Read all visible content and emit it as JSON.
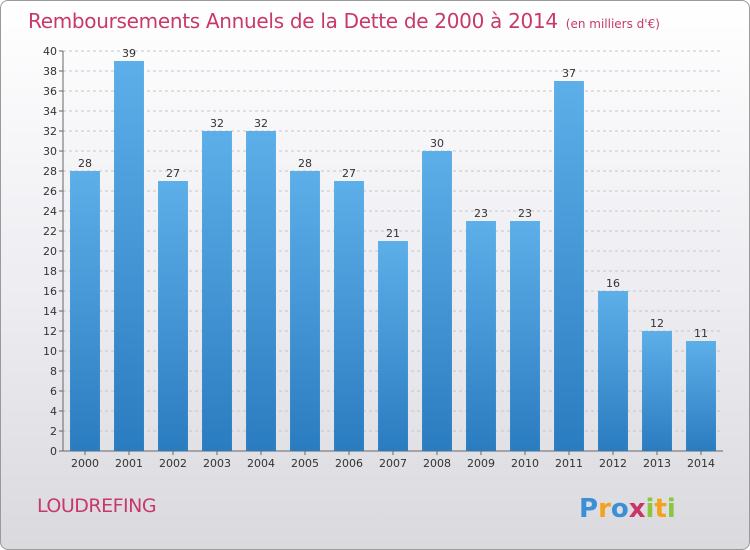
{
  "header": {
    "title": "Remboursements Annuels de la Dette de 2000 à 2014",
    "subtitle": "(en milliers d'€)"
  },
  "footer": {
    "commune": "LOUDREFING",
    "brand": "Proxiti"
  },
  "colors": {
    "title": "#c8386a",
    "bar_top": "#5dafe9",
    "bar_bottom": "#2a7cc0",
    "brand_p": "#3a8fd6",
    "brand_r": "#f4a21a",
    "brand_o": "#3a8fd6",
    "brand_x": "#cc3366",
    "brand_i": "#8cc63f",
    "brand_t": "#f4a21a"
  },
  "chart_data": {
    "type": "bar",
    "title": "Remboursements Annuels de la Dette de 2000 à 2014",
    "subtitle": "(en milliers d'€)",
    "categories": [
      "2000",
      "2001",
      "2002",
      "2003",
      "2004",
      "2005",
      "2006",
      "2007",
      "2008",
      "2009",
      "2010",
      "2011",
      "2012",
      "2013",
      "2014"
    ],
    "values": [
      28,
      39,
      27,
      32,
      32,
      28,
      27,
      21,
      30,
      23,
      23,
      37,
      16,
      12,
      11
    ],
    "ylim": [
      0,
      40
    ],
    "yticks": [
      0,
      2,
      4,
      6,
      8,
      10,
      12,
      14,
      16,
      18,
      20,
      22,
      24,
      26,
      28,
      30,
      32,
      34,
      36,
      38,
      40
    ],
    "grid": true,
    "data_labels": true
  }
}
